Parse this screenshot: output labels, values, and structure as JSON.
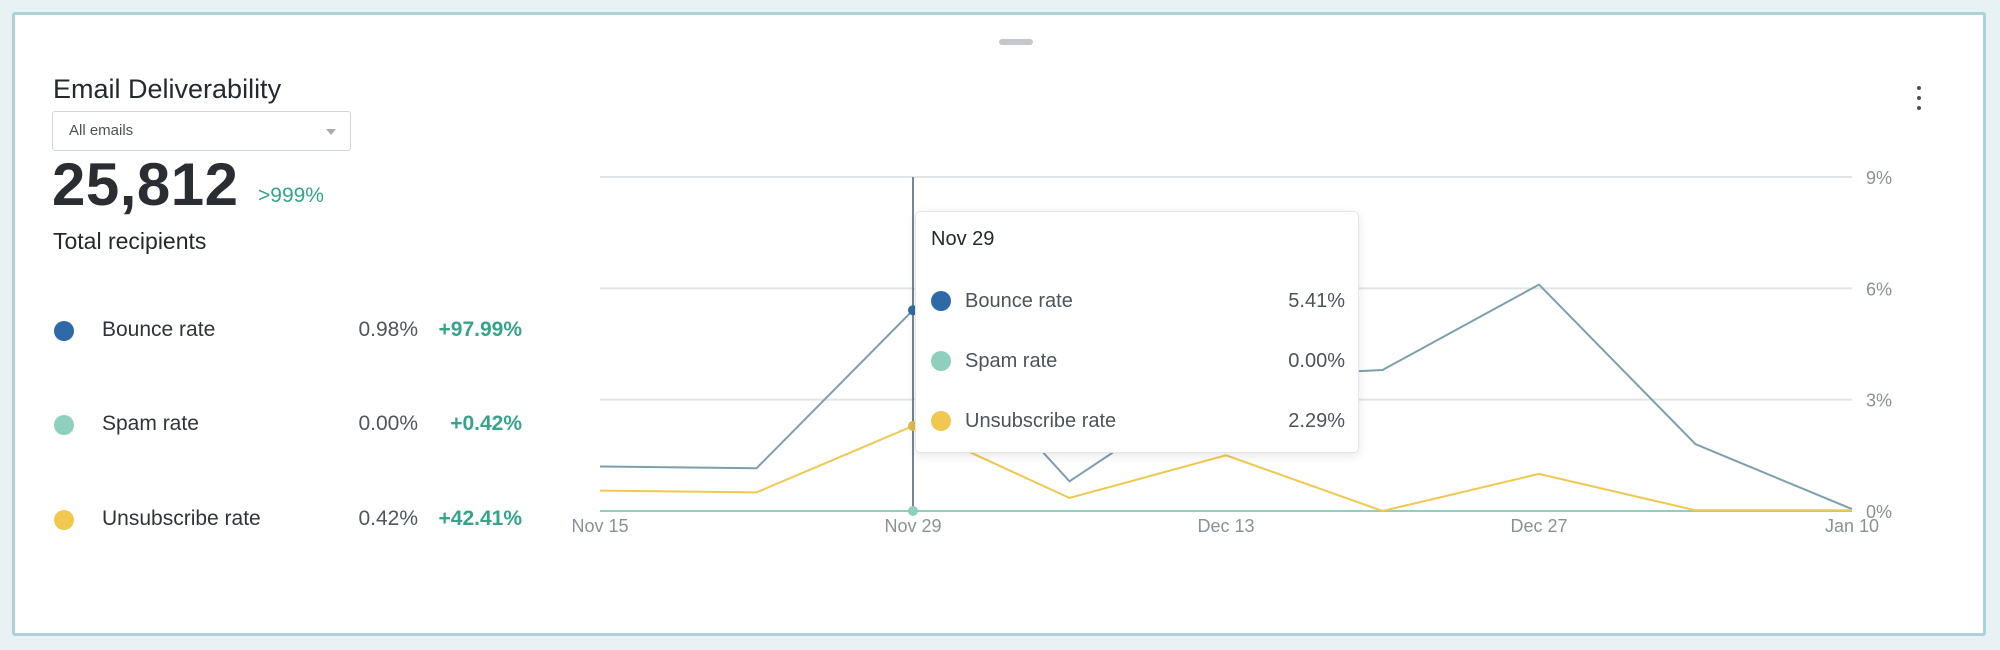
{
  "widget": {
    "title": "Email Deliverability",
    "filter": {
      "selected": "All emails"
    },
    "total": {
      "value": "25,812",
      "change": ">999%",
      "label": "Total recipients"
    },
    "metrics": [
      {
        "label": "Bounce rate",
        "value": "0.98%",
        "change": "+97.99%",
        "color": "#2f6aa8"
      },
      {
        "label": "Spam rate",
        "value": "0.00%",
        "change": "+0.42%",
        "color": "#8fcfbe"
      },
      {
        "label": "Unsubscribe rate",
        "value": "0.42%",
        "change": "+42.41%",
        "color": "#f1c84f"
      }
    ],
    "menu_icon": "kebab-vertical-icon",
    "drag_icon": "drag-handle-icon"
  },
  "chart_data": {
    "type": "line",
    "x": [
      "Nov 15",
      "Nov 22",
      "Nov 29",
      "Dec 6",
      "Dec 13",
      "Dec 20",
      "Dec 27",
      "Jan 3",
      "Jan 10"
    ],
    "x_tick_labels": [
      "Nov 15",
      "Nov 29",
      "Dec 13",
      "Dec 27",
      "Jan 10"
    ],
    "y_tick_labels": [
      "0%",
      "3%",
      "6%",
      "9%"
    ],
    "ylim": [
      0,
      9
    ],
    "grid": true,
    "y_axis_position": "right",
    "series": [
      {
        "name": "Bounce rate",
        "color": "#7c9fae",
        "values": [
          1.2,
          1.15,
          5.41,
          0.8,
          3.6,
          3.8,
          6.1,
          1.8,
          0.05
        ]
      },
      {
        "name": "Spam rate",
        "color": "#8fcfbe",
        "values": [
          0,
          0,
          0,
          0,
          0,
          0,
          0,
          0,
          0
        ]
      },
      {
        "name": "Unsubscribe rate",
        "color": "#f1c84f",
        "values": [
          0.55,
          0.5,
          2.29,
          0.35,
          1.5,
          0,
          1.0,
          0.02,
          0.02
        ]
      }
    ],
    "highlight_index": 2,
    "tooltip": {
      "date": "Nov 29",
      "rows": [
        {
          "label": "Bounce rate",
          "value": "5.41%",
          "color": "#2f6aa8"
        },
        {
          "label": "Spam rate",
          "value": "0.00%",
          "color": "#8fcfbe"
        },
        {
          "label": "Unsubscribe rate",
          "value": "2.29%",
          "color": "#f1c84f"
        }
      ]
    }
  }
}
